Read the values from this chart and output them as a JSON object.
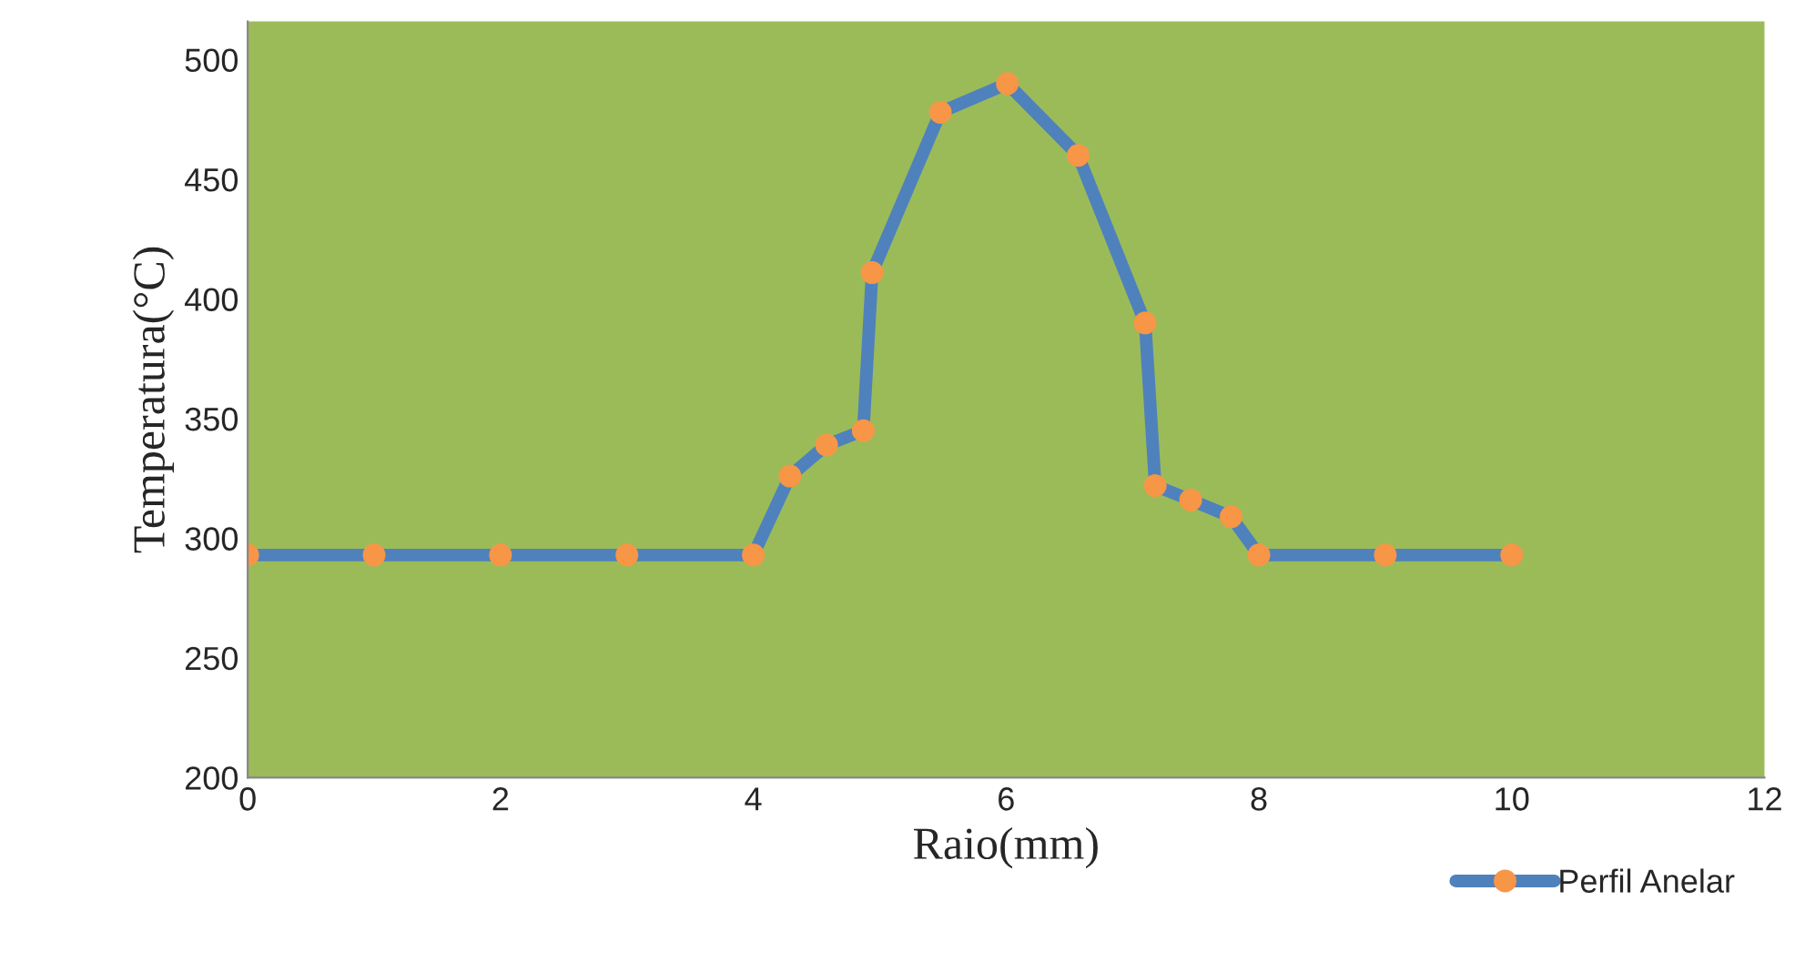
{
  "chart_data": {
    "type": "line",
    "xlabel": "Raio(mm)",
    "ylabel": "Temperatura(°C)",
    "x": [
      0,
      1,
      2,
      3,
      4,
      4.29,
      4.58,
      4.87,
      4.94,
      5.48,
      6.01,
      6.57,
      7.1,
      7.18,
      7.46,
      7.78,
      8,
      9,
      10
    ],
    "series": [
      {
        "name": "Perfil Anelar",
        "color": "#4f81bd",
        "values": [
          293,
          293,
          293,
          293,
          293,
          326,
          339,
          345,
          411,
          478,
          490,
          460,
          390,
          322,
          316,
          309,
          293,
          293,
          293
        ]
      }
    ],
    "marker": "circle",
    "line_style": "solid",
    "xlim": [
      0,
      12
    ],
    "xticks": [
      0,
      2,
      4,
      6,
      8,
      10,
      12
    ],
    "ylim": [
      200,
      516
    ],
    "yticks": [
      200,
      250,
      300,
      350,
      400,
      450,
      500
    ],
    "grid": false,
    "legend": "bottom right"
  }
}
